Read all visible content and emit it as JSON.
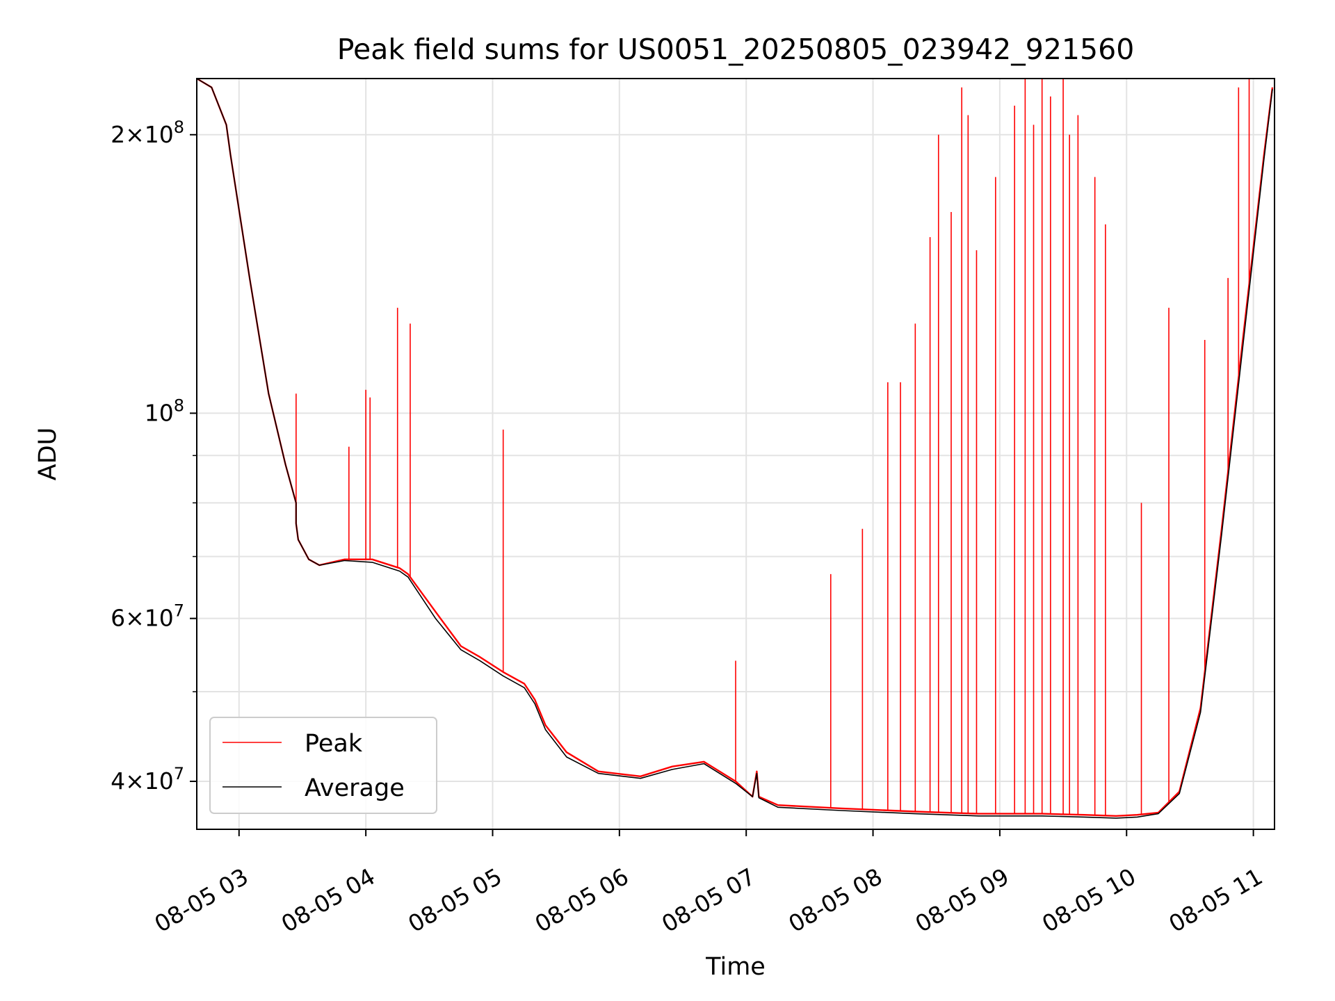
{
  "chart_data": {
    "type": "line",
    "title": "Peak field sums for US0051_20250805_023942_921560",
    "xlabel": "Time",
    "ylabel": "ADU",
    "y_scale": "log",
    "ylim": [
      35500000,
      230000000
    ],
    "xlim": [
      "2025-08-05 02:40",
      "2025-08-05 11:10"
    ],
    "grid": true,
    "legend": {
      "location": "lower-left"
    },
    "x_ticks": [
      "08-05 03",
      "08-05 04",
      "08-05 05",
      "08-05 06",
      "08-05 07",
      "08-05 08",
      "08-05 09",
      "08-05 10",
      "08-05 11"
    ],
    "y_ticks": [
      {
        "value": 40000000,
        "base": "4",
        "exp": "7"
      },
      {
        "value": 60000000,
        "base": "6",
        "exp": "7"
      },
      {
        "value": 100000000,
        "base": "",
        "exp": "8"
      },
      {
        "value": 200000000,
        "base": "2",
        "exp": "8"
      }
    ],
    "series": [
      {
        "name": "Peak",
        "color": "#ff0000",
        "x": [
          "2025-08-05 02:40",
          "2025-08-05 02:47",
          "2025-08-05 02:54",
          "2025-08-05 02:56",
          "2025-08-05 03:05",
          "2025-08-05 03:14",
          "2025-08-05 03:22",
          "2025-08-05 03:27",
          "2025-08-05 03:27",
          "2025-08-05 03:28",
          "2025-08-05 03:33",
          "2025-08-05 03:38",
          "2025-08-05 03:50",
          "2025-08-05 04:03",
          "2025-08-05 04:16",
          "2025-08-05 04:20",
          "2025-08-05 04:33",
          "2025-08-05 04:45",
          "2025-08-05 04:54",
          "2025-08-05 05:05",
          "2025-08-05 05:15",
          "2025-08-05 05:20",
          "2025-08-05 05:25",
          "2025-08-05 05:35",
          "2025-08-05 05:50",
          "2025-08-05 06:10",
          "2025-08-05 06:25",
          "2025-08-05 06:40",
          "2025-08-05 06:55",
          "2025-08-05 07:03",
          "2025-08-05 07:05",
          "2025-08-05 07:06",
          "2025-08-05 07:15",
          "2025-08-05 07:45",
          "2025-08-05 08:20",
          "2025-08-05 08:50",
          "2025-08-05 09:20",
          "2025-08-05 09:40",
          "2025-08-05 09:55",
          "2025-08-05 10:05",
          "2025-08-05 10:15",
          "2025-08-05 10:25",
          "2025-08-05 10:35",
          "2025-08-05 10:45",
          "2025-08-05 10:55",
          "2025-08-05 11:05",
          "2025-08-05 11:09"
        ],
        "y": [
          230000000,
          225000000,
          205000000,
          190000000,
          140000000,
          105000000,
          88000000,
          80000000,
          76000000,
          73000000,
          69500000,
          68500000,
          69500000,
          69500000,
          68000000,
          67000000,
          61000000,
          56000000,
          54500000,
          52500000,
          51000000,
          49000000,
          46000000,
          43000000,
          41000000,
          40500000,
          41500000,
          42000000,
          40000000,
          38500000,
          41000000,
          38500000,
          37700000,
          37400000,
          37100000,
          36900000,
          36900000,
          36800000,
          36700000,
          36800000,
          37000000,
          39000000,
          48000000,
          75000000,
          120000000,
          190000000,
          225000000
        ]
      },
      {
        "name": "Average",
        "color": "#000000",
        "x": [
          "2025-08-05 02:40",
          "2025-08-05 02:47",
          "2025-08-05 02:54",
          "2025-08-05 02:56",
          "2025-08-05 03:05",
          "2025-08-05 03:14",
          "2025-08-05 03:22",
          "2025-08-05 03:27",
          "2025-08-05 03:27",
          "2025-08-05 03:28",
          "2025-08-05 03:33",
          "2025-08-05 03:38",
          "2025-08-05 03:50",
          "2025-08-05 04:03",
          "2025-08-05 04:16",
          "2025-08-05 04:20",
          "2025-08-05 04:33",
          "2025-08-05 04:45",
          "2025-08-05 04:54",
          "2025-08-05 05:05",
          "2025-08-05 05:15",
          "2025-08-05 05:20",
          "2025-08-05 05:25",
          "2025-08-05 05:35",
          "2025-08-05 05:50",
          "2025-08-05 06:10",
          "2025-08-05 06:25",
          "2025-08-05 06:40",
          "2025-08-05 06:55",
          "2025-08-05 07:03",
          "2025-08-05 07:05",
          "2025-08-05 07:06",
          "2025-08-05 07:15",
          "2025-08-05 07:45",
          "2025-08-05 08:20",
          "2025-08-05 08:50",
          "2025-08-05 09:20",
          "2025-08-05 09:40",
          "2025-08-05 09:55",
          "2025-08-05 10:05",
          "2025-08-05 10:15",
          "2025-08-05 10:25",
          "2025-08-05 10:35",
          "2025-08-05 10:45",
          "2025-08-05 10:55",
          "2025-08-05 11:05",
          "2025-08-05 11:09"
        ],
        "y": [
          230000000,
          225000000,
          205000000,
          190000000,
          140000000,
          105000000,
          88000000,
          80000000,
          76000000,
          73000000,
          69500000,
          68500000,
          69300000,
          69000000,
          67500000,
          66500000,
          60000000,
          55500000,
          54000000,
          52000000,
          50500000,
          48500000,
          45500000,
          42500000,
          40800000,
          40300000,
          41200000,
          41800000,
          39800000,
          38500000,
          40800000,
          38400000,
          37500000,
          37200000,
          36900000,
          36700000,
          36700000,
          36600000,
          36500000,
          36600000,
          36900000,
          38800000,
          47500000,
          74000000,
          118000000,
          188000000,
          224000000
        ]
      }
    ],
    "spikes": {
      "series": "Peak",
      "x": [
        "2025-08-05 03:27",
        "2025-08-05 03:52",
        "2025-08-05 04:00",
        "2025-08-05 04:02",
        "2025-08-05 04:15",
        "2025-08-05 04:21",
        "2025-08-05 05:05",
        "2025-08-05 06:55",
        "2025-08-05 07:40",
        "2025-08-05 07:55",
        "2025-08-05 08:07",
        "08-05 08:13",
        "2025-08-05 08:20",
        "2025-08-05 08:27",
        "2025-08-05 08:31",
        "2025-08-05 08:37",
        "2025-08-05 08:42",
        "2025-08-05 08:45",
        "2025-08-05 08:49",
        "2025-08-05 08:58",
        "2025-08-05 09:07",
        "2025-08-05 09:12",
        "2025-08-05 09:16",
        "2025-08-05 09:20",
        "2025-08-05 09:24",
        "2025-08-05 09:30",
        "2025-08-05 09:33",
        "2025-08-05 09:37",
        "2025-08-05 09:45",
        "2025-08-05 09:50",
        "2025-08-05 10:07",
        "2025-08-05 10:20",
        "2025-08-05 10:37",
        "2025-08-05 10:48",
        "2025-08-05 10:53",
        "2025-08-05 10:58"
      ],
      "y": [
        105000000,
        92000000,
        106000000,
        104000000,
        130000000,
        125000000,
        96000000,
        54000000,
        67000000,
        75000000,
        108000000,
        108000000,
        125000000,
        155000000,
        200000000,
        165000000,
        225000000,
        210000000,
        150000000,
        180000000,
        215000000,
        230000000,
        205000000,
        235000000,
        220000000,
        230000000,
        200000000,
        210000000,
        180000000,
        160000000,
        80000000,
        130000000,
        120000000,
        140000000,
        225000000,
        230000000
      ]
    }
  }
}
